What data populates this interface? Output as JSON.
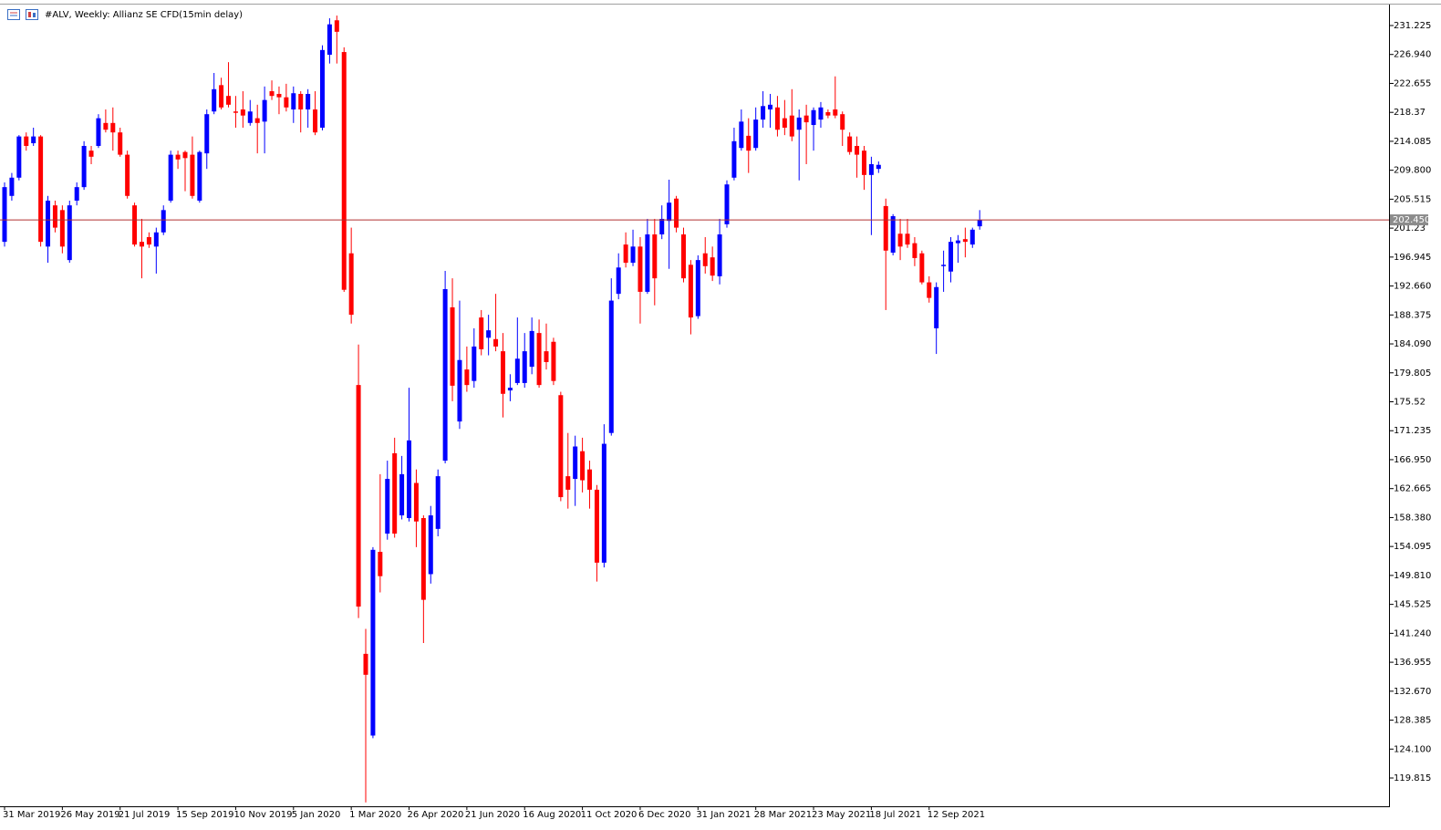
{
  "chart_data": {
    "type": "candlestick",
    "title": "#ALV, Weekly:  Allianz SE CFD(15min delay)",
    "up_color": "#0000ff",
    "down_color": "#ff0000",
    "categories": [
      "31 Mar 2019",
      null,
      null,
      null,
      null,
      null,
      null,
      null,
      "26 May 2019",
      null,
      null,
      null,
      null,
      null,
      null,
      null,
      "21 Jul 2019",
      null,
      null,
      null,
      null,
      null,
      null,
      null,
      "15 Sep 2019",
      null,
      null,
      null,
      null,
      null,
      null,
      null,
      "10 Nov 2019",
      null,
      null,
      null,
      null,
      null,
      null,
      null,
      "5 Jan 2020",
      null,
      null,
      null,
      null,
      null,
      null,
      null,
      "1 Mar 2020",
      null,
      null,
      null,
      null,
      null,
      null,
      null,
      "26 Apr 2020",
      null,
      null,
      null,
      null,
      null,
      null,
      null,
      "21 Jun 2020",
      null,
      null,
      null,
      null,
      null,
      null,
      null,
      "16 Aug 2020",
      null,
      null,
      null,
      null,
      null,
      null,
      null,
      "11 Oct 2020",
      null,
      null,
      null,
      null,
      null,
      null,
      null,
      "6 Dec 2020",
      null,
      null,
      null,
      null,
      null,
      null,
      null,
      "31 Jan 2021",
      null,
      null,
      null,
      null,
      null,
      null,
      null,
      "28 Mar 2021",
      null,
      null,
      null,
      null,
      null,
      null,
      null,
      "23 May 2021",
      null,
      null,
      null,
      null,
      null,
      null,
      null,
      "18 Jul 2021",
      null,
      null,
      null,
      null,
      null,
      null,
      null,
      "12 Sep 2021",
      null,
      null,
      null,
      null,
      null,
      null,
      null
    ],
    "open": [
      199.2,
      206.0,
      208.7,
      214.8,
      213.8,
      214.8,
      198.5,
      204.6,
      203.9,
      196.5,
      205.3,
      207.3,
      212.7,
      213.4,
      216.8,
      216.8,
      215.4,
      212.1,
      204.6,
      199.2,
      199.9,
      198.5,
      200.6,
      205.3,
      212.1,
      212.5,
      212.1,
      205.3,
      212.3,
      218.5,
      222.4,
      220.8,
      218.5,
      218.8,
      216.8,
      217.5,
      217.0,
      221.5,
      221.1,
      220.6,
      218.8,
      221.1,
      218.8,
      218.8,
      216.1,
      226.9,
      232.0,
      227.3,
      197.5,
      178.0,
      138.2,
      126.1,
      153.3,
      156.0,
      167.9,
      158.7,
      158.3,
      163.5,
      158.3,
      150.0,
      156.7,
      166.8,
      189.5,
      172.6,
      180.3,
      178.6,
      188.0,
      185.0,
      184.8,
      183.0,
      177.2,
      178.3,
      178.3,
      180.7,
      185.7,
      183.0,
      184.4,
      176.5,
      164.5,
      164.1,
      168.2,
      165.5,
      162.5,
      151.7,
      170.9,
      191.5,
      198.8,
      196.1,
      198.5,
      191.8,
      200.3,
      200.3,
      202.3,
      205.6,
      200.3,
      195.8,
      188.2,
      197.5,
      196.9,
      194.1,
      201.8,
      208.7,
      213.1,
      214.9,
      213.1,
      217.3,
      218.8,
      219.1,
      217.5,
      217.9,
      215.8,
      217.9,
      216.5,
      217.3,
      218.4,
      218.8,
      218.1,
      214.8,
      213.4,
      212.7,
      209.1,
      210.0,
      204.5,
      197.6,
      200.4,
      200.4,
      199.0,
      197.5,
      193.2,
      186.4,
      195.6,
      194.8,
      199.0,
      199.6,
      198.8,
      201.5
    ],
    "high": [
      208.0,
      209.4,
      215.0,
      215.4,
      216.1,
      215.0,
      206.0,
      205.3,
      204.6,
      205.3,
      208.0,
      214.1,
      213.4,
      218.1,
      218.8,
      219.1,
      216.1,
      212.7,
      205.0,
      202.6,
      200.6,
      201.3,
      204.6,
      212.7,
      212.7,
      212.7,
      214.8,
      212.7,
      218.8,
      224.2,
      223.5,
      225.8,
      220.8,
      221.5,
      220.2,
      219.5,
      222.2,
      223.1,
      222.2,
      222.6,
      222.2,
      221.5,
      221.8,
      221.5,
      228.3,
      232.3,
      232.7,
      228.0,
      201.3,
      184.0,
      141.9,
      154.0,
      164.8,
      166.8,
      170.2,
      167.5,
      177.6,
      165.5,
      158.7,
      160.1,
      165.5,
      194.9,
      193.8,
      190.5,
      183.7,
      186.4,
      189.1,
      188.4,
      191.5,
      185.7,
      179.6,
      188.0,
      185.7,
      188.0,
      187.7,
      187.1,
      185.0,
      177.0,
      170.9,
      170.5,
      170.2,
      166.8,
      163.2,
      172.2,
      193.8,
      197.5,
      200.6,
      201.0,
      199.9,
      202.6,
      202.6,
      204.6,
      208.4,
      206.0,
      201.3,
      196.5,
      197.2,
      199.9,
      198.5,
      202.6,
      208.3,
      216.1,
      218.8,
      217.5,
      219.1,
      221.5,
      221.1,
      220.8,
      220.2,
      221.8,
      218.8,
      219.5,
      219.1,
      219.9,
      218.8,
      223.7,
      218.5,
      215.4,
      214.8,
      213.4,
      211.8,
      211.1,
      205.6,
      203.3,
      202.6,
      202.6,
      199.9,
      197.9,
      194.1,
      193.2,
      197.9,
      199.9,
      200.2,
      201.3,
      201.3,
      203.9
    ],
    "low": [
      198.5,
      205.3,
      208.3,
      212.7,
      213.4,
      198.5,
      196.1,
      200.6,
      197.5,
      196.1,
      204.6,
      206.9,
      210.7,
      213.1,
      215.4,
      212.7,
      211.8,
      205.6,
      198.5,
      193.8,
      198.3,
      194.5,
      200.2,
      205.0,
      210.0,
      206.7,
      205.6,
      205.0,
      210.0,
      218.1,
      218.8,
      219.1,
      216.1,
      216.1,
      216.4,
      212.3,
      212.3,
      220.2,
      218.1,
      218.5,
      216.8,
      215.4,
      216.1,
      215.0,
      215.7,
      225.6,
      225.6,
      191.8,
      187.1,
      143.5,
      116.2,
      125.7,
      147.3,
      155.1,
      155.4,
      158.1,
      157.8,
      154.0,
      139.8,
      148.6,
      155.6,
      166.4,
      175.6,
      171.5,
      177.0,
      177.6,
      182.4,
      182.4,
      183.0,
      173.2,
      175.6,
      178.0,
      177.6,
      179.6,
      177.6,
      180.3,
      178.0,
      160.8,
      159.7,
      160.1,
      162.1,
      159.7,
      148.9,
      151.0,
      170.5,
      190.7,
      195.4,
      195.6,
      187.1,
      191.5,
      189.8,
      199.6,
      195.2,
      200.6,
      193.2,
      185.5,
      187.8,
      194.5,
      193.4,
      192.9,
      201.3,
      208.3,
      212.7,
      209.4,
      212.7,
      216.1,
      216.1,
      214.8,
      215.0,
      214.1,
      208.3,
      210.7,
      212.7,
      216.1,
      217.5,
      217.5,
      213.4,
      212.1,
      208.7,
      206.9,
      200.2,
      209.4,
      189.1,
      197.2,
      196.5,
      198.3,
      195.6,
      192.9,
      190.2,
      182.6,
      191.8,
      193.2,
      196.1,
      196.9,
      198.3,
      201.0
    ],
    "close": [
      207.3,
      208.7,
      214.8,
      213.4,
      214.8,
      199.2,
      205.3,
      201.3,
      198.5,
      204.6,
      207.3,
      213.4,
      211.8,
      217.5,
      215.8,
      215.4,
      212.1,
      206.0,
      198.8,
      198.5,
      198.8,
      200.6,
      203.9,
      212.1,
      211.4,
      211.6,
      206.0,
      212.5,
      218.1,
      221.8,
      219.1,
      219.5,
      218.3,
      217.9,
      218.5,
      216.8,
      220.2,
      220.8,
      220.6,
      219.1,
      221.2,
      218.8,
      221.1,
      215.4,
      227.6,
      231.4,
      230.3,
      192.1,
      188.4,
      145.2,
      135.1,
      153.6,
      149.7,
      164.1,
      156.0,
      164.8,
      169.8,
      157.8,
      146.2,
      158.7,
      164.5,
      192.2,
      177.9,
      181.7,
      178.0,
      183.7,
      183.3,
      186.1,
      183.7,
      176.7,
      177.6,
      181.9,
      183.0,
      186.0,
      178.0,
      181.4,
      178.6,
      161.4,
      162.5,
      168.9,
      163.9,
      162.5,
      151.7,
      169.3,
      190.5,
      195.4,
      196.1,
      198.5,
      191.8,
      200.3,
      193.8,
      202.6,
      205.0,
      201.3,
      193.8,
      188.0,
      196.5,
      195.6,
      194.2,
      200.3,
      207.7,
      214.1,
      217.0,
      212.7,
      217.3,
      219.3,
      219.5,
      215.8,
      216.1,
      214.8,
      217.6,
      216.9,
      218.7,
      219.1,
      217.9,
      217.9,
      215.8,
      212.5,
      212.1,
      209.1,
      210.7,
      210.6,
      197.9,
      203.0,
      198.5,
      198.8,
      196.8,
      193.2,
      190.9,
      192.5,
      195.8,
      199.2,
      199.4,
      199.2,
      201.0,
      202.45
    ],
    "price_line": {
      "value": 202.45,
      "label": "202.450",
      "color": "#b03030"
    },
    "ylim": [
      115.63,
      234.33
    ],
    "yticks": [
      231.225,
      {
        "value": 226.94,
        "label": "226.940"
      },
      222.655,
      218.37,
      214.085,
      {
        "value": 209.8,
        "label": "209.800"
      },
      205.515,
      201.23,
      196.945,
      {
        "value": 192.66,
        "label": "192.660"
      },
      188.375,
      {
        "value": 184.09,
        "label": "184.090"
      },
      179.805,
      175.52,
      171.235,
      {
        "value": 166.95,
        "label": "166.950"
      },
      162.665,
      {
        "value": 158.38,
        "label": "158.380"
      },
      154.095,
      {
        "value": 149.81,
        "label": "149.810"
      },
      145.525,
      {
        "value": 141.24,
        "label": "141.240"
      },
      136.955,
      {
        "value": 132.67,
        "label": "132.670"
      },
      128.385,
      {
        "value": 124.1,
        "label": "124.100"
      },
      119.815
    ]
  }
}
